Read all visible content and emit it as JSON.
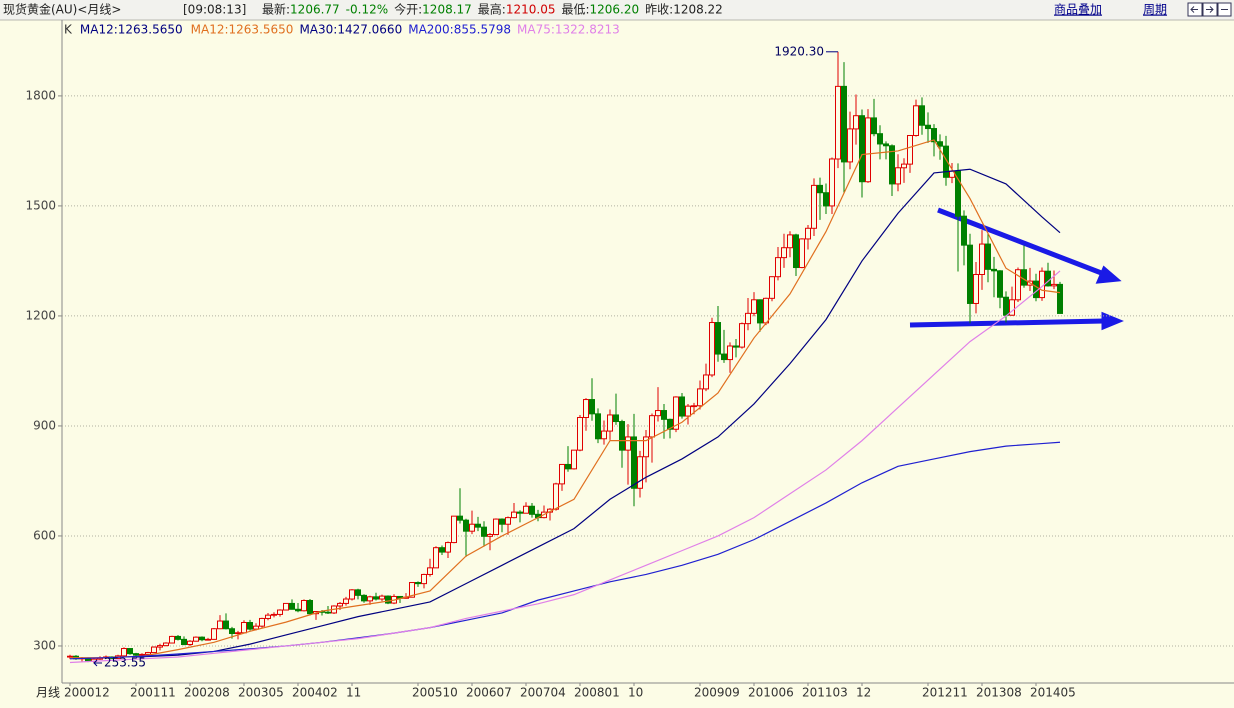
{
  "header": {
    "title": "现货黄金(AU)<月线>",
    "time": "[09:08:13]",
    "fields": [
      {
        "label": "最新:",
        "value": "1206.77",
        "color": "#008000"
      },
      {
        "label": "",
        "value": "-0.12%",
        "color": "#008000"
      },
      {
        "label": "今开:",
        "value": "1208.17",
        "color": "#008000"
      },
      {
        "label": "最高:",
        "value": "1210.05",
        "color": "#d00000"
      },
      {
        "label": "最低:",
        "value": "1206.20",
        "color": "#008000"
      },
      {
        "label": "昨收:",
        "value": "1208.22",
        "color": "#222222"
      }
    ],
    "overlay": "商品叠加",
    "period": "周期"
  },
  "chart_data": {
    "type": "candlestick",
    "x_label": "月线",
    "legend": [
      {
        "text": "K",
        "color": "#333333"
      },
      {
        "text": "MA12:1263.5650",
        "color": "#000080"
      }
    ],
    "up_color": "#e00000",
    "down_color": "#008000",
    "ylim": [
      199,
      2007
    ],
    "yticks": [
      300,
      600,
      900,
      1200,
      1500,
      1800
    ],
    "grid": true,
    "max_label": {
      "value": 1920.3,
      "label": "1920.30"
    },
    "min_label": {
      "value": 253.55,
      "label": "253.55"
    },
    "categories": [
      "200012",
      null,
      null,
      null,
      null,
      null,
      null,
      null,
      null,
      null,
      null,
      "200111",
      null,
      null,
      null,
      null,
      null,
      null,
      null,
      null,
      "200208",
      null,
      null,
      null,
      null,
      null,
      null,
      null,
      null,
      "200305",
      null,
      null,
      null,
      null,
      null,
      null,
      null,
      null,
      "200402",
      null,
      null,
      null,
      null,
      null,
      null,
      null,
      null,
      "11",
      null,
      null,
      null,
      null,
      null,
      null,
      null,
      null,
      null,
      null,
      "200510",
      null,
      null,
      null,
      null,
      null,
      null,
      null,
      null,
      "200607",
      null,
      null,
      null,
      null,
      null,
      null,
      null,
      null,
      "200704",
      null,
      null,
      null,
      null,
      null,
      null,
      null,
      null,
      "200801",
      null,
      null,
      null,
      null,
      null,
      null,
      null,
      null,
      "10",
      null,
      null,
      null,
      null,
      null,
      null,
      null,
      null,
      null,
      null,
      "200909",
      null,
      null,
      null,
      null,
      null,
      null,
      null,
      null,
      "201006",
      null,
      null,
      null,
      null,
      null,
      null,
      null,
      null,
      "201103",
      null,
      null,
      null,
      null,
      null,
      null,
      null,
      null,
      "12",
      null,
      null,
      null,
      null,
      null,
      null,
      null,
      null,
      null,
      null,
      "201211",
      null,
      null,
      null,
      null,
      null,
      null,
      null,
      null,
      "201308",
      null,
      null,
      null,
      null,
      null,
      null,
      null,
      null,
      "201405",
      null,
      null,
      null,
      null
    ],
    "ohlc": [
      [
        270,
        276,
        264,
        272
      ],
      [
        272,
        275,
        262,
        265
      ],
      [
        265,
        270,
        255,
        267
      ],
      [
        267,
        269,
        256,
        258
      ],
      [
        258,
        266,
        253.55,
        264
      ],
      [
        264,
        272,
        262,
        267
      ],
      [
        267,
        274,
        265,
        270
      ],
      [
        270,
        272,
        264,
        266
      ],
      [
        266,
        276,
        265,
        273
      ],
      [
        273,
        296,
        271,
        293
      ],
      [
        293,
        294,
        276,
        279
      ],
      [
        279,
        281,
        271,
        275
      ],
      [
        275,
        280,
        271,
        277
      ],
      [
        277,
        284,
        275,
        282
      ],
      [
        282,
        299,
        281,
        297
      ],
      [
        297,
        306,
        288,
        301
      ],
      [
        301,
        310,
        299,
        308
      ],
      [
        308,
        328,
        307,
        326
      ],
      [
        326,
        330,
        315,
        318
      ],
      [
        318,
        326,
        302,
        304
      ],
      [
        304,
        316,
        300,
        313
      ],
      [
        313,
        326,
        312,
        324
      ],
      [
        324,
        326,
        313,
        317
      ],
      [
        317,
        322,
        316,
        318
      ],
      [
        318,
        349,
        317,
        347
      ],
      [
        347,
        384,
        346,
        368
      ],
      [
        368,
        389,
        345,
        347
      ],
      [
        347,
        352,
        320,
        334
      ],
      [
        334,
        341,
        318,
        336
      ],
      [
        336,
        370,
        334,
        364
      ],
      [
        364,
        371,
        342,
        346
      ],
      [
        346,
        362,
        342,
        354
      ],
      [
        354,
        377,
        350,
        375
      ],
      [
        375,
        390,
        370,
        384
      ],
      [
        384,
        392,
        378,
        386
      ],
      [
        386,
        400,
        380,
        398
      ],
      [
        398,
        417,
        397,
        416
      ],
      [
        416,
        427,
        399,
        400
      ],
      [
        400,
        417,
        392,
        396
      ],
      [
        396,
        427,
        394,
        424
      ],
      [
        424,
        428,
        383,
        388
      ],
      [
        388,
        395,
        371,
        394
      ],
      [
        394,
        398,
        383,
        392
      ],
      [
        392,
        409,
        387,
        390
      ],
      [
        390,
        411,
        387,
        409
      ],
      [
        409,
        420,
        398,
        416
      ],
      [
        416,
        434,
        410,
        428
      ],
      [
        428,
        455,
        424,
        453
      ],
      [
        453,
        456,
        427,
        438
      ],
      [
        438,
        441,
        418,
        423
      ],
      [
        423,
        437,
        412,
        434
      ],
      [
        434,
        445,
        424,
        428
      ],
      [
        428,
        440,
        422,
        436
      ],
      [
        436,
        438,
        414,
        417
      ],
      [
        417,
        441,
        414,
        435
      ],
      [
        435,
        436,
        417,
        430
      ],
      [
        430,
        444,
        429,
        433
      ],
      [
        433,
        474,
        432,
        473
      ],
      [
        473,
        476,
        461,
        470
      ],
      [
        470,
        497,
        457,
        495
      ],
      [
        495,
        538,
        489,
        513
      ],
      [
        513,
        572,
        513,
        568
      ],
      [
        568,
        574,
        548,
        556
      ],
      [
        556,
        585,
        540,
        582
      ],
      [
        582,
        654,
        580,
        654
      ],
      [
        654,
        730,
        634,
        643
      ],
      [
        643,
        647,
        543,
        613
      ],
      [
        613,
        669,
        605,
        632
      ],
      [
        632,
        652,
        613,
        624
      ],
      [
        624,
        640,
        571,
        599
      ],
      [
        599,
        608,
        561,
        604
      ],
      [
        604,
        648,
        602,
        646
      ],
      [
        646,
        648,
        610,
        632
      ],
      [
        632,
        653,
        603,
        650
      ],
      [
        650,
        690,
        648,
        665
      ],
      [
        665,
        670,
        637,
        662
      ],
      [
        662,
        692,
        662,
        681
      ],
      [
        681,
        690,
        650,
        659
      ],
      [
        659,
        671,
        640,
        650
      ],
      [
        650,
        683,
        648,
        665
      ],
      [
        665,
        676,
        642,
        673
      ],
      [
        673,
        745,
        669,
        742
      ],
      [
        742,
        795,
        723,
        795
      ],
      [
        795,
        845,
        775,
        783
      ],
      [
        783,
        834,
        781,
        834
      ],
      [
        834,
        930,
        831,
        923
      ],
      [
        923,
        976,
        887,
        972
      ],
      [
        972,
        1030,
        914,
        933
      ],
      [
        933,
        948,
        853,
        865
      ],
      [
        865,
        915,
        849,
        886
      ],
      [
        886,
        945,
        862,
        930
      ],
      [
        930,
        988,
        903,
        912
      ],
      [
        912,
        917,
        786,
        834
      ],
      [
        834,
        905,
        740,
        870
      ],
      [
        870,
        933,
        681,
        730
      ],
      [
        730,
        832,
        705,
        816
      ],
      [
        816,
        889,
        746,
        870
      ],
      [
        870,
        934,
        800,
        928
      ],
      [
        928,
        1006,
        912,
        942
      ],
      [
        942,
        960,
        865,
        918
      ],
      [
        918,
        920,
        866,
        891
      ],
      [
        891,
        981,
        883,
        979
      ],
      [
        979,
        990,
        920,
        927
      ],
      [
        927,
        960,
        904,
        954
      ],
      [
        954,
        963,
        932,
        955
      ],
      [
        955,
        1024,
        945,
        1001
      ],
      [
        1001,
        1070,
        995,
        1039
      ],
      [
        1039,
        1195,
        1033,
        1182
      ],
      [
        1182,
        1227,
        1075,
        1096
      ],
      [
        1096,
        1162,
        1072,
        1081
      ],
      [
        1081,
        1128,
        1045,
        1118
      ],
      [
        1118,
        1137,
        1087,
        1115
      ],
      [
        1115,
        1182,
        1111,
        1179
      ],
      [
        1179,
        1249,
        1161,
        1207
      ],
      [
        1207,
        1265,
        1199,
        1244
      ],
      [
        1244,
        1245,
        1157,
        1181
      ],
      [
        1181,
        1250,
        1175,
        1248
      ],
      [
        1248,
        1308,
        1240,
        1307
      ],
      [
        1307,
        1388,
        1297,
        1359
      ],
      [
        1359,
        1424,
        1331,
        1386
      ],
      [
        1386,
        1431,
        1360,
        1421
      ],
      [
        1421,
        1424,
        1309,
        1332
      ],
      [
        1332,
        1412,
        1330,
        1410
      ],
      [
        1410,
        1448,
        1381,
        1439
      ],
      [
        1439,
        1575,
        1418,
        1556
      ],
      [
        1556,
        1577,
        1462,
        1536
      ],
      [
        1536,
        1561,
        1478,
        1500
      ],
      [
        1500,
        1632,
        1478,
        1628
      ],
      [
        1628,
        1920.3,
        1603,
        1826
      ],
      [
        1826,
        1892,
        1535,
        1620
      ],
      [
        1620,
        1757,
        1600,
        1710
      ],
      [
        1710,
        1804,
        1667,
        1746
      ],
      [
        1746,
        1763,
        1523,
        1566
      ],
      [
        1566,
        1764,
        1563,
        1740
      ],
      [
        1740,
        1792,
        1690,
        1697
      ],
      [
        1697,
        1720,
        1627,
        1669
      ],
      [
        1669,
        1676,
        1627,
        1664
      ],
      [
        1664,
        1668,
        1527,
        1560
      ],
      [
        1560,
        1641,
        1540,
        1604
      ],
      [
        1604,
        1630,
        1563,
        1614
      ],
      [
        1614,
        1693,
        1590,
        1692
      ],
      [
        1692,
        1790,
        1689,
        1773
      ],
      [
        1773,
        1796,
        1694,
        1720
      ],
      [
        1720,
        1755,
        1672,
        1711
      ],
      [
        1711,
        1723,
        1635,
        1675
      ],
      [
        1675,
        1695,
        1626,
        1663
      ],
      [
        1663,
        1691,
        1555,
        1578
      ],
      [
        1578,
        1617,
        1562,
        1595
      ],
      [
        1595,
        1616,
        1321,
        1472
      ],
      [
        1472,
        1488,
        1338,
        1393
      ],
      [
        1393,
        1424,
        1180,
        1234
      ],
      [
        1234,
        1347,
        1207,
        1313
      ],
      [
        1313,
        1434,
        1271,
        1396
      ],
      [
        1396,
        1424,
        1292,
        1327
      ],
      [
        1327,
        1361,
        1251,
        1323
      ],
      [
        1323,
        1325,
        1221,
        1251
      ],
      [
        1251,
        1267,
        1182,
        1202
      ],
      [
        1202,
        1280,
        1200,
        1244
      ],
      [
        1244,
        1332,
        1238,
        1326
      ],
      [
        1326,
        1392,
        1277,
        1284
      ],
      [
        1284,
        1331,
        1268,
        1295
      ],
      [
        1295,
        1315,
        1240,
        1250
      ],
      [
        1250,
        1332,
        1241,
        1322
      ],
      [
        1322,
        1345,
        1280,
        1282
      ],
      [
        1282,
        1324,
        1273,
        1286
      ],
      [
        1286,
        1293,
        1206.2,
        1206.77
      ]
    ],
    "series": [
      {
        "name": "MA12:1263.5650",
        "color": "#e07020",
        "x": [
          "200012",
          "200106",
          "200112",
          "200206",
          "200212",
          "200306",
          "200312",
          "200406",
          "200412",
          "200506",
          "200512",
          "200606",
          "200612",
          "200706",
          "200712",
          "200806",
          "200812",
          "200906",
          "200912",
          "201006",
          "201012",
          "201106",
          "201112",
          "201206",
          "201212",
          "201306",
          "201312",
          "201406",
          "201409"
        ],
        "values": [
          268,
          268,
          272,
          290,
          310,
          340,
          365,
          395,
          410,
          425,
          450,
          545,
          600,
          650,
          700,
          860,
          860,
          910,
          990,
          1140,
          1260,
          1430,
          1640,
          1650,
          1680,
          1520,
          1330,
          1270,
          1263.565
        ]
      },
      {
        "name": "MA30:1427.0660",
        "color": "#000080",
        "x": [
          "200111",
          "200206",
          "200212",
          "200306",
          "200312",
          "200406",
          "200412",
          "200506",
          "200512",
          "200606",
          "200612",
          "200706",
          "200712",
          "200806",
          "200812",
          "200906",
          "200912",
          "201006",
          "201012",
          "201106",
          "201112",
          "201206",
          "201212",
          "201306",
          "201312",
          "201406",
          "201409"
        ],
        "values": [
          270,
          275,
          285,
          305,
          330,
          355,
          380,
          400,
          420,
          470,
          520,
          570,
          620,
          700,
          760,
          810,
          870,
          960,
          1070,
          1190,
          1350,
          1480,
          1590,
          1600,
          1560,
          1470,
          1427.066
        ]
      },
      {
        "name": "MA200:855.5798",
        "color": "#2020d0",
        "x": [
          "200012",
          "200106",
          "200112",
          "200206",
          "200212",
          "200306",
          "200312",
          "200406",
          "200412",
          "200506",
          "200512",
          "200606",
          "200612",
          "200706",
          "200712",
          "200806",
          "200812",
          "200906",
          "200912",
          "201006",
          "201012",
          "201106",
          "201112",
          "201206",
          "201212",
          "201306",
          "201312",
          "201406",
          "201409"
        ],
        "values": [
          265,
          268,
          272,
          278,
          285,
          292,
          300,
          310,
          322,
          335,
          350,
          370,
          390,
          425,
          450,
          475,
          495,
          520,
          550,
          590,
          640,
          690,
          745,
          790,
          810,
          830,
          845,
          852,
          855.5798
        ]
      },
      {
        "name": "MA75:1322.8213",
        "color": "#e080e8",
        "x": [
          "200012",
          "200106",
          "200112",
          "200206",
          "200212",
          "200306",
          "200312",
          "200406",
          "200412",
          "200506",
          "200512",
          "200606",
          "200612",
          "200706",
          "200712",
          "200806",
          "200812",
          "200906",
          "200912",
          "201006",
          "201012",
          "201106",
          "201112",
          "201206",
          "201212",
          "201306",
          "201312",
          "201406",
          "201409"
        ],
        "values": [
          255,
          260,
          265,
          270,
          280,
          290,
          300,
          310,
          320,
          335,
          350,
          375,
          395,
          415,
          440,
          480,
          520,
          560,
          600,
          650,
          715,
          780,
          860,
          950,
          1040,
          1130,
          1200,
          1280,
          1322.8213
        ]
      }
    ]
  }
}
